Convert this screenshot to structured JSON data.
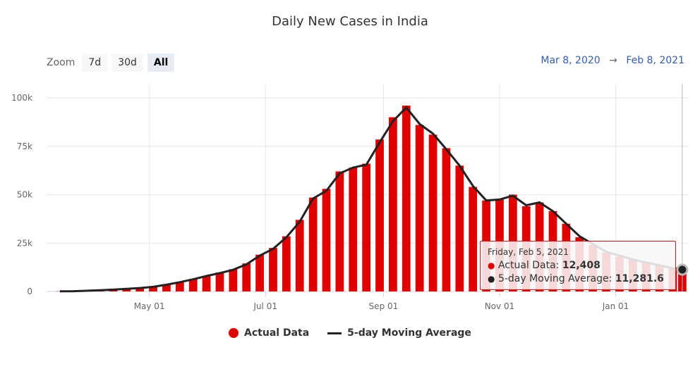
{
  "chart_data": {
    "type": "bar",
    "title": "Daily New Cases in India",
    "xlabel": "",
    "ylabel": "",
    "x_range": [
      "2020-03-08",
      "2021-02-08"
    ],
    "ylim": [
      0,
      100000
    ],
    "y_ticks": [
      "0",
      "25k",
      "50k",
      "75k",
      "100k"
    ],
    "x_ticks": [
      {
        "date": "2020-05-01",
        "label": "May 01"
      },
      {
        "date": "2020-07-01",
        "label": "Jul 01"
      },
      {
        "date": "2020-09-01",
        "label": "Sep 01"
      },
      {
        "date": "2020-11-01",
        "label": "Nov 01"
      },
      {
        "date": "2021-01-01",
        "label": "Jan 01"
      }
    ],
    "grid": true,
    "legend_position": "bottom-center",
    "series": [
      {
        "name": "Actual Data",
        "type": "bar",
        "color": "#e00000",
        "x": [
          "2020-03-15",
          "2020-03-22",
          "2020-03-29",
          "2020-04-05",
          "2020-04-12",
          "2020-04-19",
          "2020-04-26",
          "2020-05-03",
          "2020-05-10",
          "2020-05-17",
          "2020-05-24",
          "2020-05-31",
          "2020-06-07",
          "2020-06-14",
          "2020-06-21",
          "2020-06-28",
          "2020-07-05",
          "2020-07-12",
          "2020-07-19",
          "2020-07-26",
          "2020-08-02",
          "2020-08-09",
          "2020-08-16",
          "2020-08-23",
          "2020-08-30",
          "2020-09-06",
          "2020-09-13",
          "2020-09-20",
          "2020-09-27",
          "2020-10-04",
          "2020-10-11",
          "2020-10-18",
          "2020-10-25",
          "2020-11-01",
          "2020-11-08",
          "2020-11-15",
          "2020-11-22",
          "2020-11-29",
          "2020-12-06",
          "2020-12-13",
          "2020-12-20",
          "2020-12-27",
          "2021-01-03",
          "2021-01-10",
          "2021-01-17",
          "2021-01-24",
          "2021-01-31",
          "2021-02-05"
        ],
        "values": [
          100,
          150,
          400,
          700,
          1000,
          1400,
          1800,
          2500,
          3700,
          5000,
          6500,
          8000,
          9800,
          11500,
          14500,
          19000,
          22500,
          28500,
          37000,
          48500,
          53000,
          62000,
          64000,
          66000,
          78500,
          90000,
          96000,
          86000,
          81000,
          74000,
          65000,
          54000,
          47000,
          47500,
          50000,
          44000,
          46000,
          41500,
          35000,
          28000,
          24000,
          20000,
          18000,
          16500,
          15000,
          13500,
          12500,
          12408
        ]
      },
      {
        "name": "5-day Moving Average",
        "type": "line",
        "color": "#222222",
        "x": [
          "2020-03-15",
          "2020-03-22",
          "2020-03-29",
          "2020-04-05",
          "2020-04-12",
          "2020-04-19",
          "2020-04-26",
          "2020-05-03",
          "2020-05-10",
          "2020-05-17",
          "2020-05-24",
          "2020-05-31",
          "2020-06-07",
          "2020-06-14",
          "2020-06-21",
          "2020-06-28",
          "2020-07-05",
          "2020-07-12",
          "2020-07-19",
          "2020-07-26",
          "2020-08-02",
          "2020-08-09",
          "2020-08-16",
          "2020-08-23",
          "2020-08-30",
          "2020-09-06",
          "2020-09-13",
          "2020-09-20",
          "2020-09-27",
          "2020-10-04",
          "2020-10-11",
          "2020-10-18",
          "2020-10-25",
          "2020-11-01",
          "2020-11-08",
          "2020-11-15",
          "2020-11-22",
          "2020-11-29",
          "2020-12-06",
          "2020-12-13",
          "2020-12-20",
          "2020-12-27",
          "2021-01-03",
          "2021-01-10",
          "2021-01-17",
          "2021-01-24",
          "2021-01-31",
          "2021-02-05"
        ],
        "values": [
          100,
          140,
          350,
          650,
          950,
          1350,
          1800,
          2400,
          3500,
          4800,
          6300,
          8000,
          9500,
          11200,
          14000,
          18500,
          22000,
          28000,
          36000,
          48000,
          52000,
          61000,
          64000,
          65500,
          77000,
          88000,
          95000,
          86500,
          81500,
          73500,
          65000,
          54500,
          47000,
          47500,
          49500,
          44500,
          46000,
          41500,
          35000,
          28500,
          24500,
          20500,
          18500,
          16500,
          15000,
          13500,
          12000,
          11281.6
        ]
      }
    ]
  },
  "zoom": {
    "label": "Zoom",
    "buttons": [
      {
        "label": "7d",
        "active": false
      },
      {
        "label": "30d",
        "active": false
      },
      {
        "label": "All",
        "active": true
      }
    ]
  },
  "range": {
    "from": "Mar 8, 2020",
    "arrow": "→",
    "to": "Feb 8, 2021"
  },
  "tooltip": {
    "date": "Friday, Feb 5, 2021",
    "actual_label": "Actual Data:",
    "actual_value": "12,408",
    "ma_label": "5-day Moving Average:",
    "ma_value": "11,281.6",
    "actual_dot": "●",
    "ma_dot": "●"
  },
  "legend": {
    "actual": "Actual Data",
    "ma": "5-day Moving Average"
  }
}
